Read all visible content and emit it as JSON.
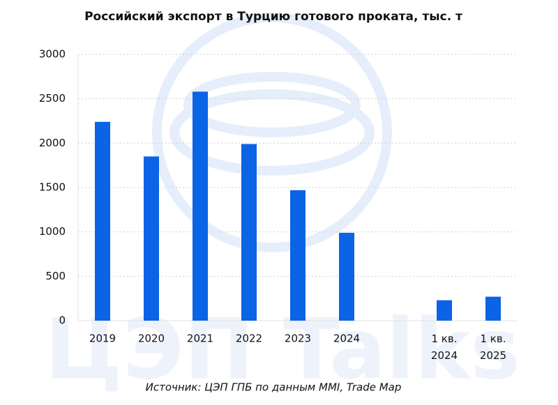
{
  "chart_data": {
    "type": "bar",
    "title": "Российский экспорт в Турцию готового проката, тыс. т",
    "source": "Источник: ЦЭП ГПБ по данным MMI, Trade Map",
    "watermark": "ЦЭП Talks",
    "categories": [
      "2019",
      "2020",
      "2021",
      "2022",
      "2023",
      "2024",
      null,
      "1 кв. 2024",
      "1 кв. 2025"
    ],
    "values": [
      2240,
      1850,
      2580,
      1990,
      1470,
      990,
      null,
      230,
      270
    ],
    "color": "#0b63e5",
    "ylim": [
      0,
      3000
    ],
    "yticks": [
      0,
      500,
      1000,
      1500,
      2000,
      2500,
      3000
    ],
    "grid": true
  }
}
